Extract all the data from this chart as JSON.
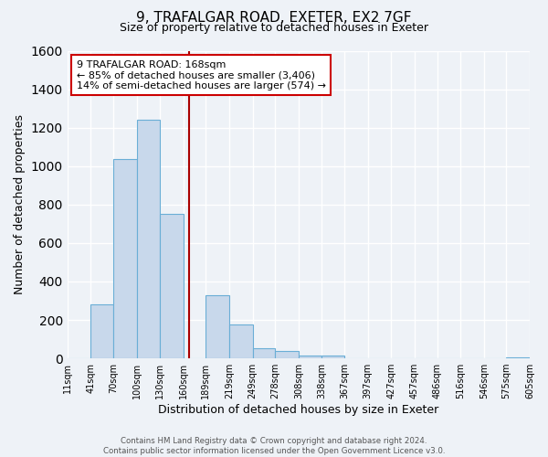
{
  "title": "9, TRAFALGAR ROAD, EXETER, EX2 7GF",
  "subtitle": "Size of property relative to detached houses in Exeter",
  "xlabel": "Distribution of detached houses by size in Exeter",
  "ylabel": "Number of detached properties",
  "bar_color": "#c8d8eb",
  "bar_edge_color": "#6aaed6",
  "background_color": "#eef2f7",
  "grid_color": "#ffffff",
  "bin_edges": [
    11,
    41,
    70,
    100,
    130,
    160,
    189,
    219,
    249,
    278,
    308,
    338,
    367,
    397,
    427,
    457,
    486,
    516,
    546,
    575,
    605
  ],
  "bin_labels": [
    "11sqm",
    "41sqm",
    "70sqm",
    "100sqm",
    "130sqm",
    "160sqm",
    "189sqm",
    "219sqm",
    "249sqm",
    "278sqm",
    "308sqm",
    "338sqm",
    "367sqm",
    "397sqm",
    "427sqm",
    "457sqm",
    "486sqm",
    "516sqm",
    "546sqm",
    "575sqm",
    "605sqm"
  ],
  "counts": [
    0,
    280,
    1035,
    1240,
    750,
    0,
    330,
    175,
    55,
    38,
    15,
    15,
    0,
    0,
    0,
    0,
    0,
    0,
    0,
    5
  ],
  "ylim": [
    0,
    1600
  ],
  "yticks": [
    0,
    200,
    400,
    600,
    800,
    1000,
    1200,
    1400,
    1600
  ],
  "property_size": 168,
  "vline_color": "#aa0000",
  "annotation_text": "9 TRAFALGAR ROAD: 168sqm\n← 85% of detached houses are smaller (3,406)\n14% of semi-detached houses are larger (574) →",
  "annotation_box_color": "#ffffff",
  "annotation_box_edge": "#cc0000",
  "footer_line1": "Contains HM Land Registry data © Crown copyright and database right 2024.",
  "footer_line2": "Contains public sector information licensed under the Open Government Licence v3.0."
}
